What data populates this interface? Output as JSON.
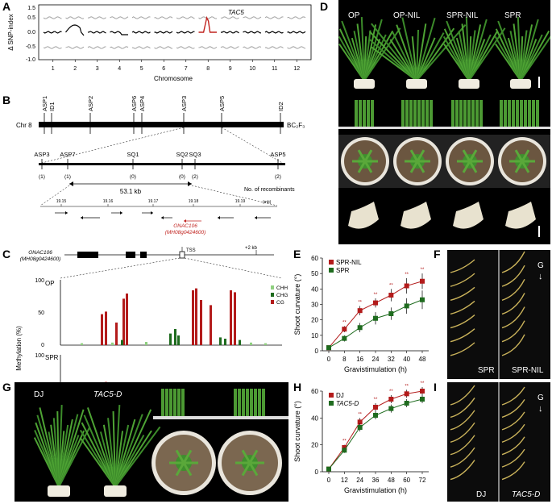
{
  "panels": {
    "A": {
      "label": "A",
      "ylabel": "Δ SNP-index",
      "xlabel": "Chromosome",
      "gene": "TAC5",
      "yticks": [
        "1.5",
        "0.5",
        "0.0",
        "-0.5",
        "-1.0"
      ],
      "chromosomes": [
        "1",
        "2",
        "3",
        "4",
        "5",
        "6",
        "7",
        "8",
        "9",
        "10",
        "11",
        "12"
      ]
    },
    "B": {
      "label": "B",
      "chr": "Chr 8",
      "population": "BC₂F₃",
      "markers_top": [
        "ASP1",
        "ID1",
        "ASP2",
        "ASP6",
        "ASP4",
        "ASP3",
        "ASP5",
        "ID2"
      ],
      "markers_fine": [
        "ASP3",
        "ASP7",
        "SQ1",
        "SQ2",
        "SQ3",
        "ASP5"
      ],
      "recombinants": [
        "(1)",
        "(1)",
        "(0)",
        "(0)",
        "(2)",
        "(2)"
      ],
      "recombinants_label": "No. of recombinants",
      "interval": "53.1 kb",
      "mb_ticks": [
        "19.15",
        "19.16",
        "19.17",
        "19.18",
        "19.19"
      ],
      "mb_unit": "(mb)",
      "gene": "ONAC106",
      "gene_id": "(MH08g0424600)"
    },
    "C": {
      "label": "C",
      "gene": "ONAC106",
      "gene_id": "(MH08g0424600)",
      "tss": "TSS",
      "plus2kb": "+2 kb",
      "ylabel": "Methylation (%)",
      "op": "OP",
      "spr": "SPR",
      "legend": [
        "CHH",
        "CHG",
        "CG"
      ],
      "yticks": [
        "100",
        "50",
        "0"
      ]
    },
    "D": {
      "label": "D",
      "genotypes": [
        "OP",
        "OP-NIL",
        "SPR-NIL",
        "SPR"
      ]
    },
    "E": {
      "label": "E",
      "ylabel": "Shoot curvature (°)",
      "xlabel": "Gravistimulation (h)",
      "legend": [
        "SPR-NIL",
        "SPR"
      ],
      "sig": "**"
    },
    "F": {
      "label": "F",
      "left": "SPR",
      "right": "SPR-NIL",
      "g": "G"
    },
    "G": {
      "label": "G",
      "left": "DJ",
      "right": "TAC5-D"
    },
    "H": {
      "label": "H",
      "ylabel": "Shoot curvature (°)",
      "xlabel": "Gravistimulation (h)",
      "legend": [
        "DJ",
        "TAC5-D"
      ],
      "sig": "**"
    },
    "I": {
      "label": "I",
      "left": "DJ",
      "right": "TAC5-D",
      "g": "G"
    }
  },
  "colors": {
    "red": "#b31b1b",
    "green": "#1e6b1e",
    "lightgreen": "#8fcf7f"
  },
  "chart_data": [
    {
      "type": "line",
      "panel": "E",
      "x": [
        0,
        8,
        16,
        24,
        32,
        40,
        48
      ],
      "xlim": [
        0,
        48
      ],
      "ylim": [
        0,
        60
      ],
      "yticks": [
        0,
        10,
        20,
        30,
        40,
        50,
        60
      ],
      "series": [
        {
          "name": "SPR-NIL",
          "values": [
            2,
            14,
            26,
            31,
            36,
            42,
            45
          ],
          "err": [
            1,
            2,
            3,
            3,
            4,
            5,
            5
          ]
        },
        {
          "name": "SPR",
          "values": [
            2,
            8,
            15,
            21,
            24,
            29,
            33
          ],
          "err": [
            1,
            2,
            3,
            4,
            4,
            5,
            6
          ]
        }
      ]
    },
    {
      "type": "line",
      "panel": "H",
      "x": [
        0,
        12,
        24,
        36,
        48,
        60,
        72
      ],
      "xlim": [
        0,
        72
      ],
      "ylim": [
        0,
        60
      ],
      "yticks": [
        0,
        20,
        40,
        60
      ],
      "series": [
        {
          "name": "DJ",
          "values": [
            2,
            18,
            37,
            48,
            54,
            58,
            60
          ],
          "err": [
            1,
            2,
            3,
            3,
            3,
            3,
            3
          ]
        },
        {
          "name": "TAC5-D",
          "values": [
            2,
            16,
            33,
            42,
            47,
            51,
            54
          ],
          "err": [
            1,
            2,
            3,
            3,
            3,
            3,
            3
          ]
        }
      ]
    }
  ]
}
